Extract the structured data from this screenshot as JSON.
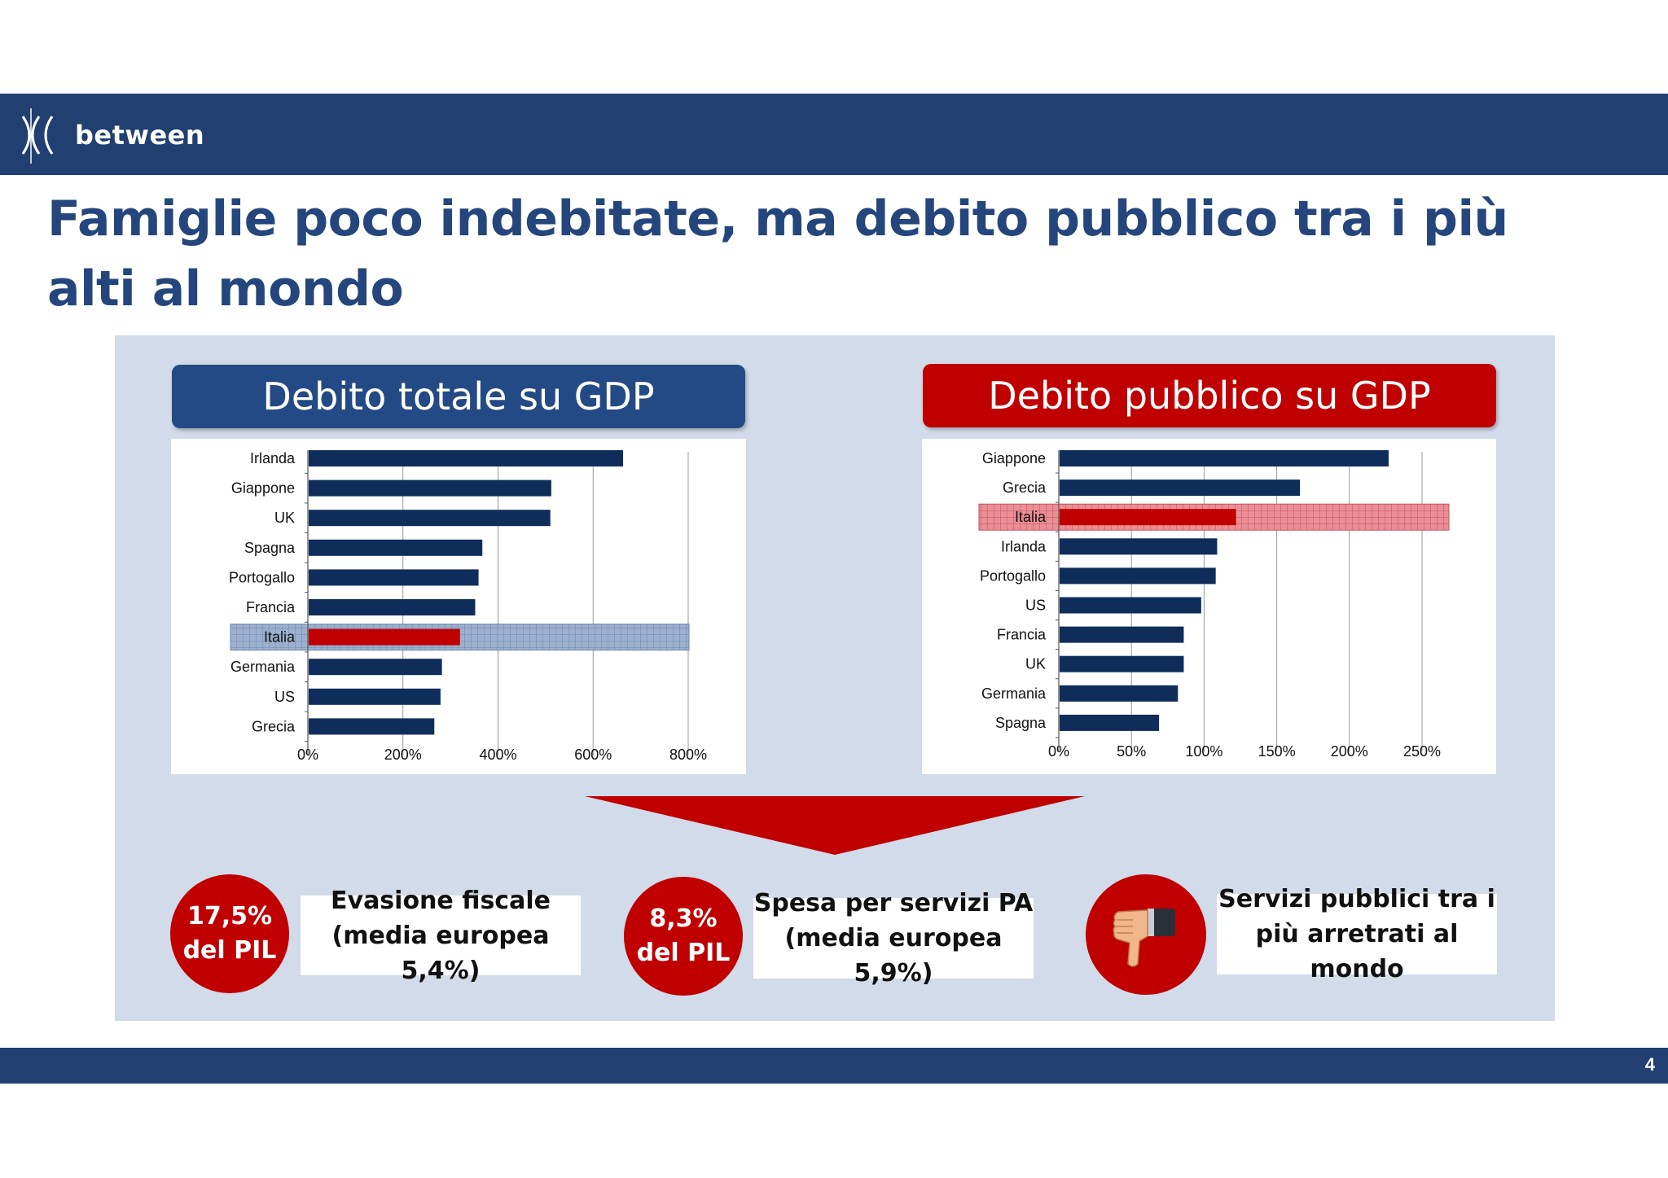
{
  "header": {
    "logo_text": "between"
  },
  "title": "Famiglie poco indebitate, ma debito pubblico tra i più alti al mondo",
  "colors": {
    "navy": "#213f70",
    "bar": "#0f2d5a",
    "highlight_bar": "#c00000",
    "accent_red": "#c00000"
  },
  "chart_data": [
    {
      "type": "bar",
      "orientation": "horizontal",
      "title": "Debito totale su GDP",
      "categories": [
        "Irlanda",
        "Giappone",
        "UK",
        "Spagna",
        "Portogallo",
        "Francia",
        "Italia",
        "Germania",
        "US",
        "Grecia"
      ],
      "values": [
        663,
        512,
        510,
        367,
        359,
        352,
        320,
        282,
        279,
        266
      ],
      "highlight": "Italia",
      "xlim": [
        0,
        800
      ],
      "ticks": [
        "0%",
        "200%",
        "400%",
        "600%",
        "800%"
      ],
      "tick_values": [
        0,
        200,
        400,
        600,
        800
      ],
      "grid": true
    },
    {
      "type": "bar",
      "orientation": "horizontal",
      "title": "Debito pubblico su GDP",
      "categories": [
        "Giappone",
        "Grecia",
        "Italia",
        "Irlanda",
        "Portogallo",
        "US",
        "Francia",
        "UK",
        "Germania",
        "Spagna"
      ],
      "values": [
        227,
        166,
        122,
        109,
        108,
        98,
        86,
        86,
        82,
        69
      ],
      "highlight": "Italia",
      "xlim": [
        0,
        250
      ],
      "ticks": [
        "0%",
        "50%",
        "100%",
        "150%",
        "200%",
        "250%"
      ],
      "tick_values": [
        0,
        50,
        100,
        150,
        200,
        250
      ],
      "grid": true
    }
  ],
  "facts": [
    {
      "value": "17,5%",
      "unit": "del PIL",
      "line1": "Evasione fiscale",
      "line2": "(media europea 5,4%)"
    },
    {
      "value": "8,3%",
      "unit": "del PIL",
      "line1": "Spesa per servizi PA",
      "line2": "(media europea 5,9%)"
    },
    {
      "icon": "thumbs-down-icon",
      "line1": "Servizi pubblici tra i",
      "line2": "più arretrati al mondo"
    }
  ],
  "footer": {
    "page_number": "4"
  }
}
